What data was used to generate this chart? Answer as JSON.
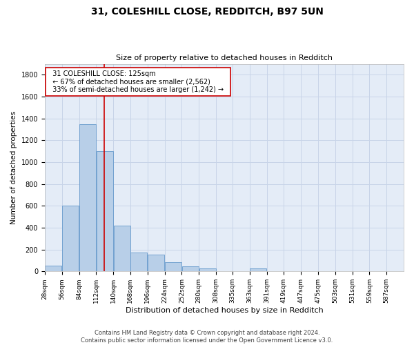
{
  "title1": "31, COLESHILL CLOSE, REDDITCH, B97 5UN",
  "title2": "Size of property relative to detached houses in Redditch",
  "xlabel": "Distribution of detached houses by size in Redditch",
  "ylabel": "Number of detached properties",
  "footer": "Contains HM Land Registry data © Crown copyright and database right 2024.\nContains public sector information licensed under the Open Government Licence v3.0.",
  "bin_labels": [
    "28sqm",
    "56sqm",
    "84sqm",
    "112sqm",
    "140sqm",
    "168sqm",
    "196sqm",
    "224sqm",
    "252sqm",
    "280sqm",
    "308sqm",
    "335sqm",
    "363sqm",
    "391sqm",
    "419sqm",
    "447sqm",
    "475sqm",
    "503sqm",
    "531sqm",
    "559sqm",
    "587sqm"
  ],
  "bar_heights": [
    50,
    600,
    1350,
    1100,
    420,
    170,
    155,
    85,
    45,
    25,
    0,
    0,
    30,
    0,
    0,
    0,
    0,
    0,
    0,
    0,
    0
  ],
  "bin_edges": [
    28,
    56,
    84,
    112,
    140,
    168,
    196,
    224,
    252,
    280,
    308,
    335,
    363,
    391,
    419,
    447,
    475,
    503,
    531,
    559,
    587,
    615
  ],
  "bar_color": "#b8cfe8",
  "bar_edge_color": "#6699cc",
  "grid_color": "#c8d4e8",
  "background_color": "#e4ecf7",
  "vline_x": 125,
  "vline_color": "#cc0000",
  "annotation_text": "  31 COLESHILL CLOSE: 125sqm  \n  ← 67% of detached houses are smaller (2,562)  \n  33% of semi-detached houses are larger (1,242) →  ",
  "annotation_box_color": "white",
  "annotation_box_edge": "#cc0000",
  "ylim": [
    0,
    1900
  ],
  "yticks": [
    0,
    200,
    400,
    600,
    800,
    1000,
    1200,
    1400,
    1600,
    1800
  ]
}
